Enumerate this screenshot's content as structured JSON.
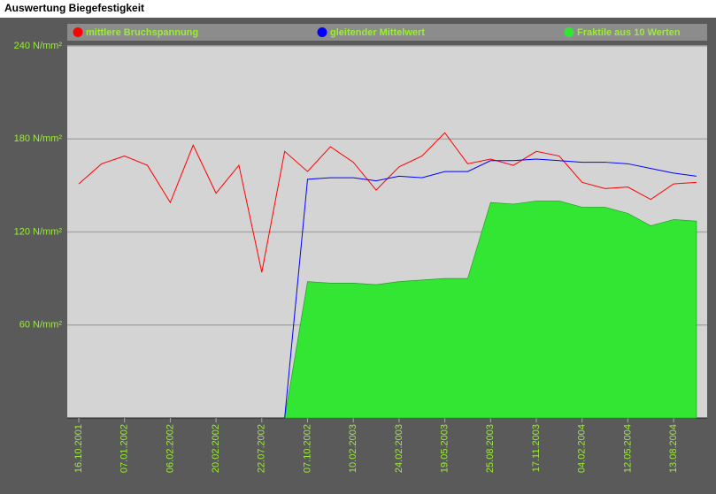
{
  "header": {
    "title": "Auswertung Biegefestigkeit"
  },
  "chart_data": {
    "type": "line",
    "categories": [
      "16.10.2001",
      null,
      "07.01.2002",
      null,
      "06.02.2002",
      null,
      "20.02.2002",
      null,
      "22.07.2002",
      null,
      "07.10.2002",
      null,
      "10.02.2003",
      null,
      "24.02.2003",
      null,
      "19.05.2003",
      null,
      "25.08.2003",
      null,
      "17.11.2003",
      null,
      "04.02.2004",
      null,
      "12.05.2004",
      null,
      "13.08.2004",
      null
    ],
    "series": [
      {
        "name": "Fraktile aus 10 Werten",
        "color": "#33e633",
        "type": "area",
        "values": [
          null,
          null,
          null,
          null,
          null,
          null,
          null,
          null,
          null,
          0,
          88,
          87,
          87,
          86,
          88,
          89,
          90,
          90,
          139,
          138,
          140,
          140,
          136,
          136,
          132,
          124,
          128,
          127
        ]
      },
      {
        "name": "mittlere Bruchspannung",
        "color": "#ff0000",
        "type": "line",
        "values": [
          151,
          164,
          169,
          163,
          139,
          176,
          145,
          163,
          94,
          172,
          159,
          175,
          165,
          147,
          162,
          169,
          184,
          164,
          167,
          163,
          172,
          169,
          152,
          148,
          149,
          141,
          151,
          152
        ]
      },
      {
        "name": "gleitender Mittelwert",
        "color": "#0000ff",
        "type": "line",
        "values": [
          null,
          null,
          null,
          null,
          null,
          null,
          null,
          null,
          null,
          0,
          154,
          155,
          155,
          153,
          156,
          155,
          159,
          159,
          166,
          166,
          167,
          166,
          165,
          165,
          164,
          161,
          158,
          156
        ]
      }
    ],
    "legend_order": [
      1,
      2,
      0
    ],
    "ylim": [
      0,
      240
    ],
    "yticks": [
      {
        "value": 60,
        "label": "60 N/mm²"
      },
      {
        "value": 120,
        "label": "120 N/mm²"
      },
      {
        "value": 180,
        "label": "180 N/mm²"
      },
      {
        "value": 240,
        "label": "240 N/mm²"
      }
    ],
    "grid": true
  }
}
